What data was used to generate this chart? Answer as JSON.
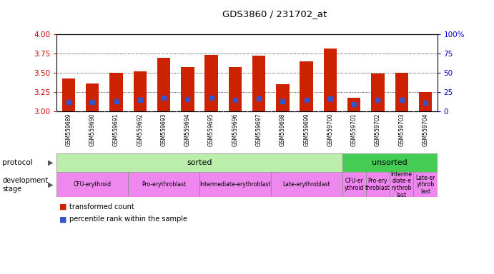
{
  "title": "GDS3860 / 231702_at",
  "samples": [
    "GSM559689",
    "GSM559690",
    "GSM559691",
    "GSM559692",
    "GSM559693",
    "GSM559694",
    "GSM559695",
    "GSM559696",
    "GSM559697",
    "GSM559698",
    "GSM559699",
    "GSM559700",
    "GSM559701",
    "GSM559702",
    "GSM559703",
    "GSM559704"
  ],
  "transformed_count": [
    3.42,
    3.36,
    3.5,
    3.52,
    3.69,
    3.57,
    3.73,
    3.57,
    3.72,
    3.35,
    3.65,
    3.81,
    3.17,
    3.49,
    3.5,
    3.25
  ],
  "percentile_rank_pct": [
    12,
    12,
    13,
    14,
    17,
    15,
    17,
    14,
    16,
    13,
    14,
    16,
    9,
    14,
    14,
    11
  ],
  "ylim_left": [
    3.0,
    4.0
  ],
  "ylim_right": [
    0,
    100
  ],
  "yticks_left": [
    3.0,
    3.25,
    3.5,
    3.75,
    4.0
  ],
  "yticks_right": [
    0,
    25,
    50,
    75,
    100
  ],
  "bar_color": "#cc2200",
  "percentile_color": "#3355cc",
  "grid_color": "#000000",
  "tick_color_left": "#cc0000",
  "tick_color_right": "#0000cc",
  "protocol_row": [
    {
      "label": "sorted",
      "start": 0,
      "end": 12,
      "color": "#bbeeaa"
    },
    {
      "label": "unsorted",
      "start": 12,
      "end": 16,
      "color": "#44cc55"
    }
  ],
  "dev_stage_row": [
    {
      "label": "CFU-erythroid",
      "start": 0,
      "end": 3,
      "color": "#ee88ee"
    },
    {
      "label": "Pro-erythroblast",
      "start": 3,
      "end": 6,
      "color": "#ee88ee"
    },
    {
      "label": "Intermediate-erythroblast",
      "start": 6,
      "end": 9,
      "color": "#ee88ee"
    },
    {
      "label": "Late-erythroblast",
      "start": 9,
      "end": 12,
      "color": "#ee88ee"
    },
    {
      "label": "CFU-er\nythroid",
      "start": 12,
      "end": 13,
      "color": "#ee88ee"
    },
    {
      "label": "Pro-ery\nthroblast",
      "start": 13,
      "end": 14,
      "color": "#ee88ee"
    },
    {
      "label": "Interme\ndiate-e\nrythrob\nlast",
      "start": 14,
      "end": 15,
      "color": "#ee88ee"
    },
    {
      "label": "Late-er\nythrob\nlast",
      "start": 15,
      "end": 16,
      "color": "#ee88ee"
    }
  ],
  "label_left": "protocol",
  "label_left2": "development stage",
  "legend1": "transformed count",
  "legend2": "percentile rank within the sample",
  "sample_bg": "#cccccc"
}
